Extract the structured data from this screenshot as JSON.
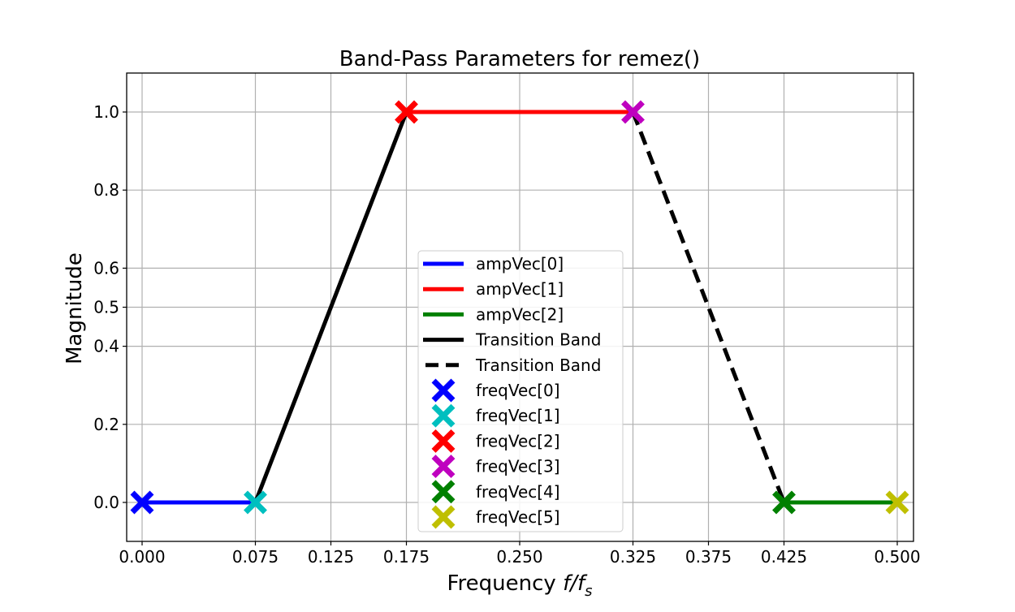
{
  "chart_data": {
    "type": "line",
    "title": "Band-Pass Parameters for remez()",
    "xlabel": "Frequency f/f_s",
    "xlabel_parts": {
      "main": "Frequency ",
      "f": "f",
      "slash": "/",
      "fs": "f",
      "sub": "s"
    },
    "ylabel": "Magnitude",
    "xlim": [
      -0.007,
      0.511
    ],
    "ylim": [
      -0.1,
      1.1
    ],
    "grid": true,
    "legend_position": "center-bottom",
    "x_ticks": [
      0.0,
      0.075,
      0.125,
      0.175,
      0.25,
      0.325,
      0.375,
      0.425,
      0.5
    ],
    "x_tick_labels": [
      "0.000",
      "0.075",
      "0.125",
      "0.175",
      "0.250",
      "0.325",
      "0.375",
      "0.425",
      "0.500"
    ],
    "y_ticks": [
      0.0,
      0.2,
      0.4,
      0.5,
      0.6,
      0.8,
      1.0
    ],
    "y_tick_labels": [
      "0.0",
      "0.2",
      "0.4",
      "0.5",
      "0.6",
      "0.8",
      "1.0"
    ],
    "series": [
      {
        "name": "ampVec[0]",
        "kind": "line",
        "style": "solid",
        "color": "#0000ff",
        "x": [
          0.0,
          0.075
        ],
        "y": [
          0.0,
          0.0
        ]
      },
      {
        "name": "ampVec[1]",
        "kind": "line",
        "style": "solid",
        "color": "#ff0000",
        "x": [
          0.175,
          0.325
        ],
        "y": [
          1.0,
          1.0
        ]
      },
      {
        "name": "ampVec[2]",
        "kind": "line",
        "style": "solid",
        "color": "#008000",
        "x": [
          0.425,
          0.5
        ],
        "y": [
          0.0,
          0.0
        ]
      },
      {
        "name": "Transition Band",
        "kind": "line",
        "style": "solid",
        "color": "#000000",
        "x": [
          0.075,
          0.175
        ],
        "y": [
          0.0,
          1.0
        ]
      },
      {
        "name": "Transition Band",
        "kind": "line",
        "style": "dashed",
        "color": "#000000",
        "x": [
          0.325,
          0.425
        ],
        "y": [
          1.0,
          0.0
        ]
      },
      {
        "name": "freqVec[0]",
        "kind": "marker",
        "marker": "X",
        "color": "#0000ff",
        "x": [
          0.0
        ],
        "y": [
          0.0
        ]
      },
      {
        "name": "freqVec[1]",
        "kind": "marker",
        "marker": "X",
        "color": "#00bfbf",
        "x": [
          0.075
        ],
        "y": [
          0.0
        ]
      },
      {
        "name": "freqVec[2]",
        "kind": "marker",
        "marker": "X",
        "color": "#ff0000",
        "x": [
          0.175
        ],
        "y": [
          1.0
        ]
      },
      {
        "name": "freqVec[3]",
        "kind": "marker",
        "marker": "X",
        "color": "#bf00bf",
        "x": [
          0.325
        ],
        "y": [
          1.0
        ]
      },
      {
        "name": "freqVec[4]",
        "kind": "marker",
        "marker": "X",
        "color": "#008000",
        "x": [
          0.425
        ],
        "y": [
          0.0
        ]
      },
      {
        "name": "freqVec[5]",
        "kind": "marker",
        "marker": "X",
        "color": "#bfbf00",
        "x": [
          0.5
        ],
        "y": [
          0.0
        ]
      }
    ]
  },
  "legend": {
    "items": [
      {
        "label": "ampVec[0]",
        "type": "line",
        "style": "solid",
        "color": "#0000ff"
      },
      {
        "label": "ampVec[1]",
        "type": "line",
        "style": "solid",
        "color": "#ff0000"
      },
      {
        "label": "ampVec[2]",
        "type": "line",
        "style": "solid",
        "color": "#008000"
      },
      {
        "label": "Transition Band",
        "type": "line",
        "style": "solid",
        "color": "#000000"
      },
      {
        "label": "Transition Band",
        "type": "line",
        "style": "dashed",
        "color": "#000000"
      },
      {
        "label": "freqVec[0]",
        "type": "marker",
        "color": "#0000ff"
      },
      {
        "label": "freqVec[1]",
        "type": "marker",
        "color": "#00bfbf"
      },
      {
        "label": "freqVec[2]",
        "type": "marker",
        "color": "#ff0000"
      },
      {
        "label": "freqVec[3]",
        "type": "marker",
        "color": "#bf00bf"
      },
      {
        "label": "freqVec[4]",
        "type": "marker",
        "color": "#008000"
      },
      {
        "label": "freqVec[5]",
        "type": "marker",
        "color": "#bfbf00"
      }
    ]
  },
  "colors": {
    "grid": "#b0b0b0",
    "axes": "#000000",
    "legend_border": "#cccccc",
    "background": "#ffffff"
  }
}
